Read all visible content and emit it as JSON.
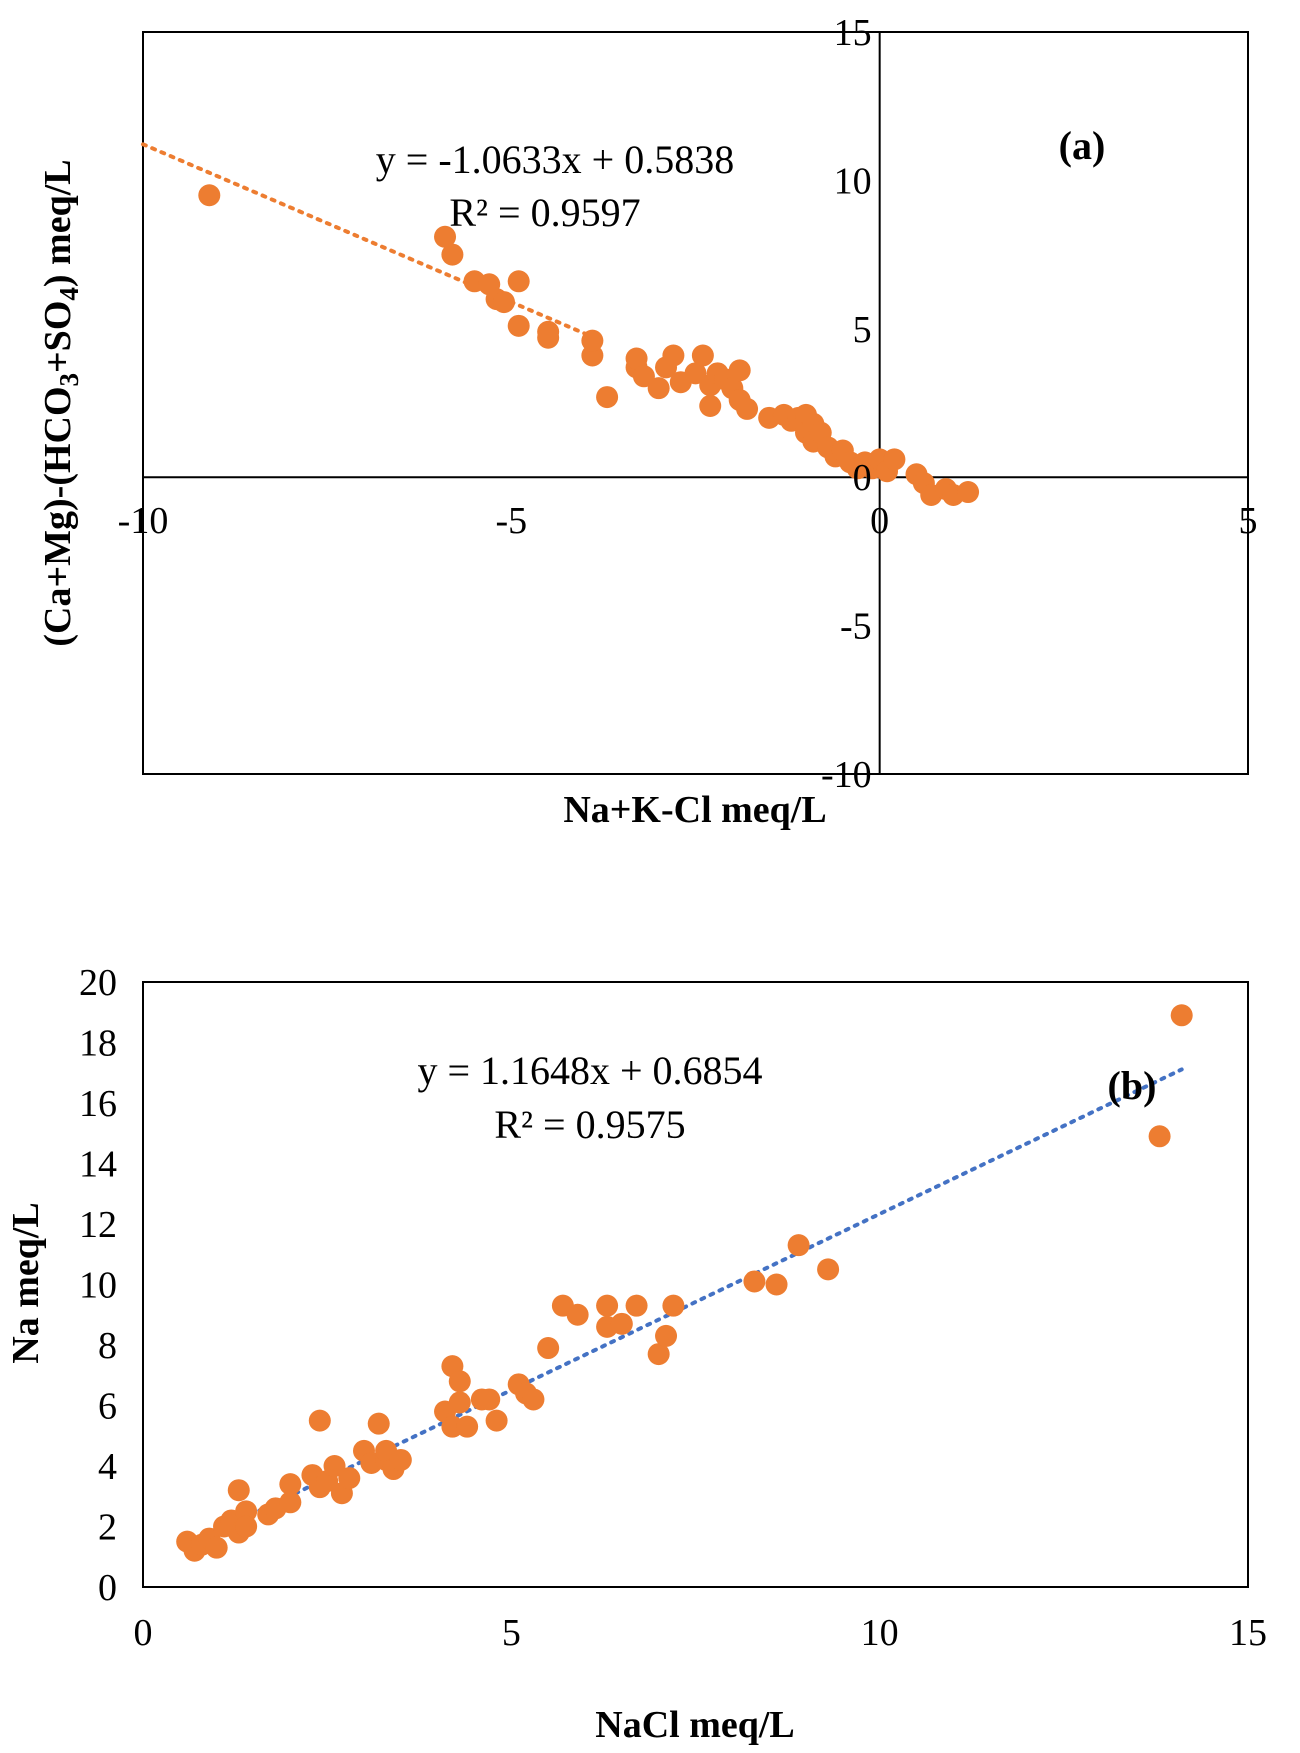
{
  "chart_data": [
    {
      "type": "scatter",
      "panel_label": "(a)",
      "xlabel": "Na+K-Cl meq/L",
      "ylabel": "(Ca+Mg)-(HCO3+SO4) meq/L",
      "ylabel_parts": [
        "(Ca+Mg)-(HCO",
        "3",
        "+SO",
        "4",
        ") meq/L"
      ],
      "xlim": [
        -10,
        5
      ],
      "ylim": [
        -10,
        15
      ],
      "x_ticks": [
        "-10",
        "-5",
        "0",
        "5"
      ],
      "y_ticks": [
        "-10",
        "-5",
        "0",
        "5",
        "10",
        "15"
      ],
      "trendline": {
        "slope": -1.0633,
        "intercept": 0.5838,
        "color": "#ED7D31",
        "x_range": [
          -10,
          -3.8
        ]
      },
      "equation": "y = -1.0633x + 0.5838",
      "r_squared": "R² = 0.9597",
      "marker_color": "#ED7D31",
      "x": [
        -9.1,
        -5.9,
        -5.8,
        -5.5,
        -5.3,
        -5.2,
        -5.1,
        -4.9,
        -4.9,
        -4.5,
        -4.5,
        -3.9,
        -3.9,
        -3.7,
        -3.3,
        -3.3,
        -3.2,
        -3.0,
        -2.9,
        -2.8,
        -2.7,
        -2.5,
        -2.4,
        -2.3,
        -2.3,
        -2.2,
        -2.1,
        -2.0,
        -1.9,
        -1.9,
        -1.8,
        -1.5,
        -1.3,
        -1.2,
        -1.1,
        -1.0,
        -1.0,
        -0.9,
        -0.9,
        -0.8,
        -0.7,
        -0.6,
        -0.5,
        -0.4,
        -0.3,
        -0.2,
        -0.1,
        0.0,
        0.1,
        0.2,
        0.5,
        0.6,
        0.7,
        0.9,
        1.0,
        1.2
      ],
      "y": [
        9.5,
        8.1,
        7.5,
        6.6,
        6.5,
        6.0,
        5.9,
        6.6,
        5.1,
        4.7,
        4.9,
        4.1,
        4.6,
        2.7,
        3.7,
        4.0,
        3.4,
        3.0,
        3.7,
        4.1,
        3.2,
        3.5,
        4.1,
        3.1,
        2.4,
        3.5,
        3.3,
        3.0,
        2.6,
        3.6,
        2.3,
        2.0,
        2.1,
        1.9,
        2.0,
        2.1,
        1.5,
        1.8,
        1.2,
        1.5,
        1.0,
        0.7,
        0.9,
        0.5,
        0.3,
        0.5,
        0.3,
        0.6,
        0.2,
        0.6,
        0.1,
        -0.2,
        -0.6,
        -0.4,
        -0.6,
        -0.5
      ]
    },
    {
      "type": "scatter",
      "panel_label": "(b)",
      "xlabel": "NaCl meq/L",
      "ylabel": "Na meq/L",
      "xlim": [
        0,
        15
      ],
      "ylim": [
        0,
        20
      ],
      "x_ticks": [
        "0",
        "5",
        "10",
        "15"
      ],
      "y_ticks": [
        "0",
        "2",
        "4",
        "6",
        "8",
        "10",
        "12",
        "14",
        "16",
        "18",
        "20"
      ],
      "trendline": {
        "slope": 1.1648,
        "intercept": 0.6854,
        "color": "#4472C4",
        "x_range": [
          0.6,
          14.1
        ]
      },
      "equation": "y = 1.1648x + 0.6854",
      "r_squared": "R² = 0.9575",
      "marker_color": "#ED7D31",
      "x": [
        0.6,
        0.7,
        0.8,
        0.9,
        1.0,
        1.1,
        1.2,
        1.3,
        1.3,
        1.4,
        1.4,
        1.7,
        1.8,
        2.0,
        2.0,
        2.3,
        2.4,
        2.4,
        2.5,
        2.6,
        2.7,
        2.8,
        3.0,
        3.1,
        3.2,
        3.3,
        3.3,
        3.4,
        3.5,
        4.1,
        4.2,
        4.2,
        4.3,
        4.3,
        4.4,
        4.6,
        4.7,
        4.8,
        5.1,
        5.2,
        5.3,
        5.5,
        5.7,
        5.9,
        6.3,
        6.3,
        6.5,
        6.7,
        7.0,
        7.1,
        7.2,
        8.3,
        8.6,
        8.9,
        9.3,
        13.8,
        14.1
      ],
      "y": [
        1.5,
        1.2,
        1.4,
        1.6,
        1.3,
        2.0,
        2.2,
        3.2,
        1.8,
        2.5,
        2.0,
        2.4,
        2.6,
        3.4,
        2.8,
        3.7,
        5.5,
        3.3,
        3.5,
        4.0,
        3.1,
        3.6,
        4.5,
        4.1,
        5.4,
        4.2,
        4.5,
        3.9,
        4.2,
        5.8,
        7.3,
        5.3,
        6.8,
        6.1,
        5.3,
        6.2,
        6.2,
        5.5,
        6.7,
        6.4,
        6.2,
        7.9,
        9.3,
        9.0,
        9.3,
        8.6,
        8.7,
        9.3,
        7.7,
        8.3,
        9.3,
        10.1,
        10.0,
        11.3,
        10.5,
        14.9,
        18.9
      ]
    }
  ]
}
